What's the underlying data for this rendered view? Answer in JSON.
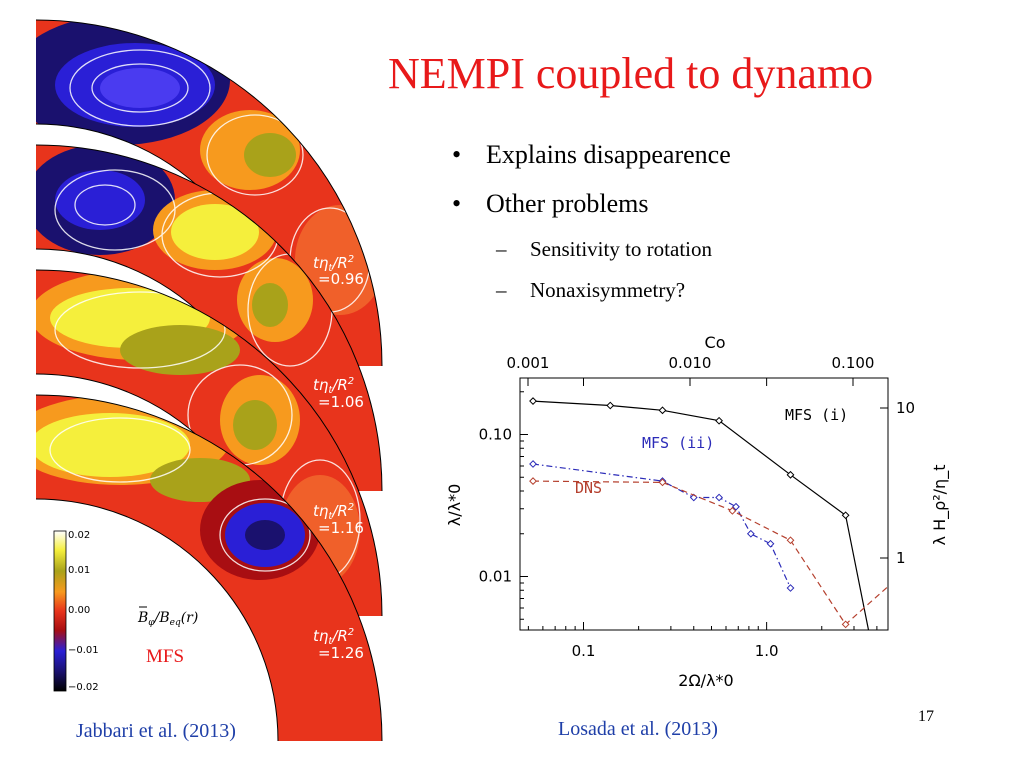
{
  "slide": {
    "title": "NEMPI coupled to dynamo",
    "bullets": [
      "Explains disappearence",
      "Other problems"
    ],
    "subbullets": [
      "Sensitivity to rotation",
      "Nonaxisymmetry?"
    ],
    "citation_left": "Jabbari et al. (2013)",
    "citation_right": "Losada et al. (2013)",
    "page_number": "17"
  },
  "maps": {
    "time_labels": [
      "=0.96",
      "=1.06",
      "=1.16",
      "=1.26"
    ],
    "time_symbol": "tη",
    "time_sub": "t",
    "time_over": "/R",
    "time_sup": "2",
    "colorbar_ticks": [
      "0.02",
      "0.01",
      "0.00",
      "−0.01",
      "−0.02"
    ],
    "colorbar_label": "B",
    "colorbar_label_rest": "/B",
    "colorbar_label_sub": "eq",
    "colorbar_label_arg": "(r)",
    "mfs_label": "MFS",
    "colors": {
      "red": "#e8341c",
      "orange": "#f79a1e",
      "yellow": "#f5ef3c",
      "olive": "#a9a21a",
      "blue": "#2a1fd6",
      "navy": "#1a116e",
      "darkred": "#a80e12"
    }
  },
  "chart_data": {
    "type": "line",
    "xlabel": "2Ω/λ*0",
    "ylabel": "λ/λ*0",
    "x2label": "Co",
    "y2label": "λ H_ρ²/η_t",
    "x_ticks": [
      "0.1",
      "1.0"
    ],
    "x2_ticks": [
      "0.001",
      "0.010",
      "0.100"
    ],
    "y_ticks": [
      "0.10",
      "0.01"
    ],
    "y2_ticks": [
      "10",
      "1"
    ],
    "xlim": [
      0.045,
      4.6
    ],
    "ylim": [
      0.0042,
      0.25
    ],
    "log_x": true,
    "log_y": true,
    "series": [
      {
        "name": "MFS (i)",
        "color": "#000000",
        "dash": "solid",
        "x": [
          0.053,
          0.14,
          0.27,
          0.55,
          1.35,
          2.7,
          3.6
        ],
        "y": [
          0.172,
          0.16,
          0.148,
          0.125,
          0.052,
          0.027,
          0.0042
        ]
      },
      {
        "name": "MFS (ii)",
        "color": "#2b2bb8",
        "dash": "dashdot",
        "x": [
          0.053,
          0.27,
          0.4,
          0.55,
          0.68,
          0.82,
          1.05,
          1.35
        ],
        "y": [
          0.062,
          0.047,
          0.036,
          0.036,
          0.031,
          0.02,
          0.017,
          0.0083
        ]
      },
      {
        "name": "DNS",
        "color": "#b5402e",
        "dash": "dashed",
        "x": [
          0.053,
          0.27,
          0.65,
          1.35,
          2.7,
          4.6
        ],
        "y": [
          0.047,
          0.046,
          0.029,
          0.018,
          0.0046,
          0.0085
        ]
      }
    ]
  }
}
